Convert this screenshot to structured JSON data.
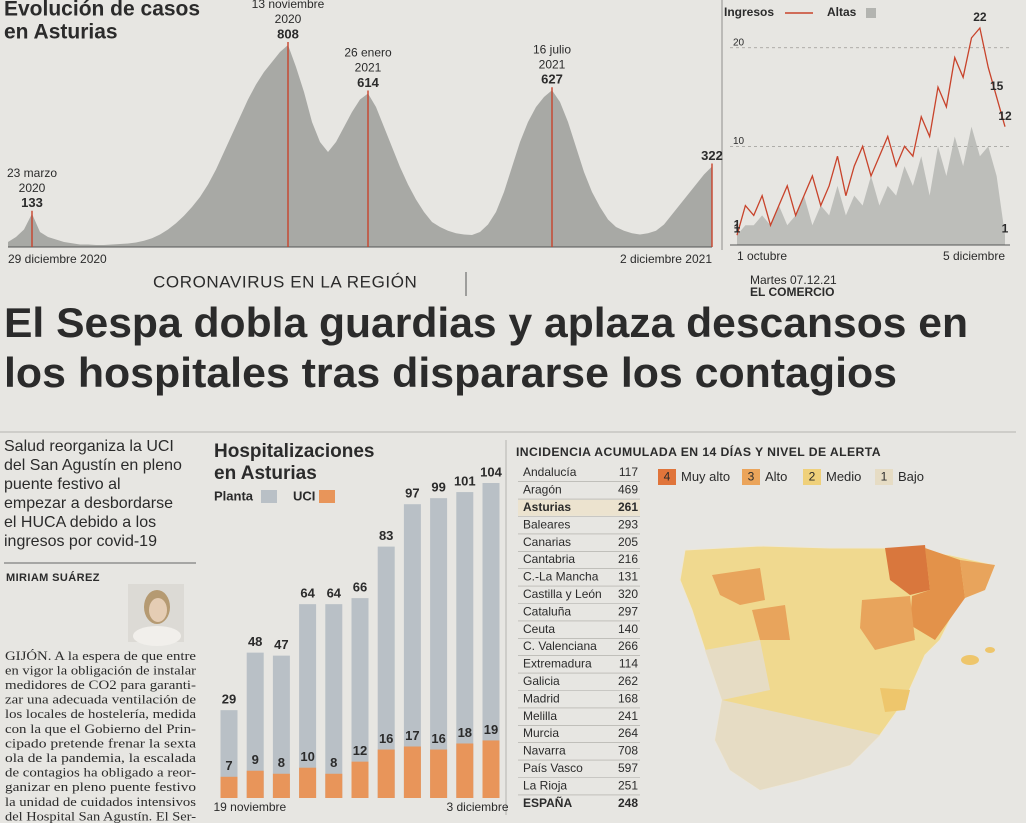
{
  "header": {
    "kicker": "CORONAVIRUS EN LA REGIÓN",
    "date": "Martes 07.12.21",
    "paper": "EL COMERCIO"
  },
  "headline": [
    "El Sespa dobla guardias y aplaza descansos en",
    "los hospitales tras dispararse los contagios"
  ],
  "summary": [
    "Salud reorganiza la UCI",
    "del San Agustín en pleno",
    "puente festivo al",
    "empezar a desbordarse",
    "el HUCA debido a los",
    "ingresos por covid-19"
  ],
  "byline": "MIRIAM SUÁREZ",
  "body": [
    "GIJÓN. A la espera de que entre",
    "en vigor la obligación de instalar",
    "medidores de CO2 para garanti-",
    "zar una adecuada ventilación de",
    "los locales de hostelería, medida",
    "con la que el Gobierno del Prin-",
    "cipado pretende frenar la sexta",
    "ola de la pandemia, la escalada",
    "de contagios ha obligado a reor-",
    "ganizar en pleno puente festivo",
    "la unidad de cuidados intensivos",
    "del Hospital San Agustín. El Ser-"
  ],
  "incidence": {
    "title": "INCIDENCIA ACUMULADA EN 14 DÍAS Y NIVEL DE ALERTA",
    "rows": [
      {
        "region": "Andalucía",
        "value": 117
      },
      {
        "region": "Aragón",
        "value": 469
      },
      {
        "region": "Asturias",
        "value": 261,
        "highlight": true
      },
      {
        "region": "Baleares",
        "value": 293
      },
      {
        "region": "Canarias",
        "value": 205
      },
      {
        "region": "Cantabria",
        "value": 216
      },
      {
        "region": "C.-La Mancha",
        "value": 131
      },
      {
        "region": "Castilla y León",
        "value": 320
      },
      {
        "region": "Cataluña",
        "value": 297
      },
      {
        "region": "Ceuta",
        "value": 140
      },
      {
        "region": "C. Valenciana",
        "value": 266
      },
      {
        "region": "Extremadura",
        "value": 114
      },
      {
        "region": "Galicia",
        "value": 262
      },
      {
        "region": "Madrid",
        "value": 168
      },
      {
        "region": "Melilla",
        "value": 241
      },
      {
        "region": "Murcia",
        "value": 264
      },
      {
        "region": "Navarra",
        "value": 708
      },
      {
        "region": "País Vasco",
        "value": 597
      },
      {
        "region": "La Rioja",
        "value": 251
      },
      {
        "region": "ESPAÑA",
        "value": 248,
        "total": true
      }
    ],
    "legend": [
      {
        "level": 4,
        "label": "Muy alto",
        "color": "#e0743a"
      },
      {
        "level": 3,
        "label": "Alto",
        "color": "#eba45a"
      },
      {
        "level": 2,
        "label": "Medio",
        "color": "#efd07a"
      },
      {
        "level": 1,
        "label": "Bajo",
        "color": "#e6dcc4"
      }
    ]
  },
  "chart_data": [
    {
      "type": "area",
      "title": [
        "Evolución de casos",
        "en Asturias"
      ],
      "color": "#9c9d9a",
      "categories": [
        "29 diciembre 2020",
        null,
        null,
        null,
        null,
        null,
        null,
        null,
        null,
        null,
        null,
        null,
        null,
        null,
        null,
        null,
        null,
        null,
        null,
        null,
        null,
        null,
        null,
        null,
        null,
        null,
        null,
        null,
        null,
        null,
        null,
        null,
        null,
        null,
        null,
        null,
        null,
        null,
        null,
        null,
        null,
        null,
        null,
        null,
        null,
        null,
        null,
        null,
        null,
        null,
        null,
        null,
        null,
        null,
        null,
        null,
        null,
        null,
        null,
        null,
        null,
        null,
        null,
        null,
        null,
        null,
        null,
        null,
        null,
        null,
        null,
        null,
        null,
        null,
        null,
        null,
        null,
        null,
        null,
        null,
        null,
        null,
        null,
        null,
        null,
        null,
        null,
        null,
        "2 diciembre 2021"
      ],
      "values": [
        20,
        40,
        70,
        133,
        60,
        40,
        30,
        20,
        15,
        10,
        10,
        8,
        8,
        10,
        12,
        14,
        18,
        25,
        35,
        50,
        70,
        95,
        125,
        160,
        200,
        250,
        310,
        380,
        450,
        520,
        590,
        650,
        700,
        740,
        780,
        808,
        720,
        620,
        500,
        420,
        380,
        420,
        480,
        540,
        590,
        614,
        560,
        480,
        400,
        320,
        250,
        190,
        140,
        100,
        80,
        65,
        55,
        50,
        48,
        60,
        90,
        140,
        220,
        320,
        420,
        500,
        560,
        600,
        627,
        580,
        500,
        400,
        300,
        220,
        160,
        110,
        80,
        65,
        55,
        50,
        55,
        65,
        90,
        130,
        170,
        210,
        250,
        290,
        322
      ],
      "annotation_color": "#c8432b",
      "annotations": [
        {
          "lines": [
            "23 marzo",
            "2020"
          ],
          "value": 133
        },
        {
          "lines": [
            "13 noviembre",
            "2020"
          ],
          "value": 808
        },
        {
          "lines": [
            "26 enero",
            "2021"
          ],
          "value": 614
        },
        {
          "lines": [
            "16 julio",
            "2021"
          ],
          "value": 627
        },
        {
          "value": 322
        }
      ]
    },
    {
      "type": "line",
      "categories": [
        "1 octubre",
        null,
        null,
        null,
        null,
        null,
        null,
        null,
        null,
        null,
        null,
        null,
        null,
        null,
        null,
        null,
        null,
        null,
        null,
        null,
        null,
        null,
        null,
        null,
        null,
        null,
        null,
        null,
        null,
        null,
        null,
        null,
        "5 diciembre"
      ],
      "ylim": [
        0,
        22
      ],
      "yticks": [
        10,
        20
      ],
      "grid": true,
      "series": [
        {
          "name": "Ingresos",
          "color": "#c8432b",
          "values": [
            1,
            4,
            3,
            5,
            2,
            4,
            6,
            3,
            5,
            7,
            4,
            6,
            9,
            5,
            8,
            10,
            7,
            9,
            11,
            8,
            10,
            9,
            13,
            11,
            16,
            14,
            19,
            17,
            21,
            22,
            18,
            15,
            12
          ],
          "annotations": [
            22,
            15,
            12,
            1
          ]
        },
        {
          "name": "Altas",
          "color": "#b3b4b0",
          "type": "area",
          "values": [
            1,
            2,
            2,
            3,
            2,
            4,
            2,
            3,
            5,
            2,
            4,
            3,
            6,
            3,
            5,
            4,
            7,
            4,
            6,
            5,
            8,
            6,
            9,
            5,
            10,
            7,
            11,
            8,
            12,
            9,
            10,
            7,
            1
          ],
          "annotations": [
            1,
            1
          ]
        }
      ]
    },
    {
      "type": "bar",
      "title": [
        "Hospitalizaciones",
        "en Asturias"
      ],
      "categories": [
        "19 noviembre",
        null,
        null,
        null,
        null,
        null,
        null,
        null,
        null,
        null,
        "3 diciembre"
      ],
      "series": [
        {
          "name": "Planta",
          "color": "#b9c0c6",
          "values": [
            29,
            48,
            47,
            64,
            64,
            66,
            83,
            97,
            99,
            101,
            104
          ]
        },
        {
          "name": "UCI",
          "color": "#e8955a",
          "values": [
            7,
            9,
            8,
            10,
            8,
            12,
            16,
            17,
            16,
            18,
            19
          ]
        }
      ]
    }
  ]
}
